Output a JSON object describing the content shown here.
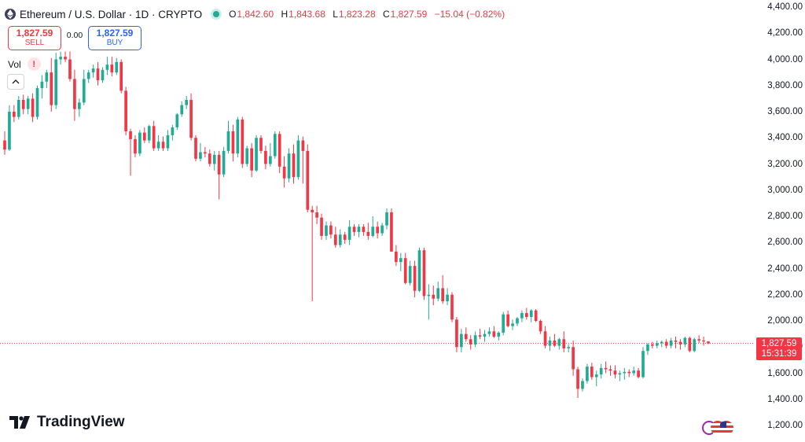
{
  "header": {
    "title": "Ethereum / U.S. Dollar · 1D · CRYPTO",
    "ohlc": [
      {
        "key": "O",
        "value": "1,842.60"
      },
      {
        "key": "H",
        "value": "1,843.68"
      },
      {
        "key": "L",
        "value": "1,823.28"
      },
      {
        "key": "C",
        "value": "1,827.59"
      }
    ],
    "change": "−15.04 (−0.82%)"
  },
  "trade": {
    "sell_price": "1,827.59",
    "sell_label": "SELL",
    "spread": "0.00",
    "buy_price": "1,827.59",
    "buy_label": "BUY"
  },
  "volume": {
    "label": "Vol",
    "warning": "!"
  },
  "price_axis": [
    "4,400.00",
    "4,200.00",
    "4,000.00",
    "3,800.00",
    "3,600.00",
    "3,400.00",
    "3,200.00",
    "3,000.00",
    "2,800.00",
    "2,600.00",
    "2,400.00",
    "2,200.00",
    "2,000.00",
    "1,800.00",
    "1,600.00",
    "1,400.00",
    "1,200.00"
  ],
  "last_price": {
    "price": "1,827.59",
    "countdown": "15:31:39"
  },
  "brand": {
    "name": "TradingView"
  },
  "colors": {
    "up": "#22ab94",
    "down": "#f23645",
    "accent": "#2962ff",
    "grid": "#f2f3f5"
  },
  "chart_data": {
    "type": "candlestick",
    "symbol": "ETHUSD",
    "interval": "1D",
    "ylim": [
      1200,
      4400
    ],
    "grid": false,
    "last_price": 1827.59,
    "candles": [
      [
        3380,
        3450,
        3270,
        3310
      ],
      [
        3310,
        3650,
        3300,
        3600
      ],
      [
        3600,
        3650,
        3520,
        3560
      ],
      [
        3560,
        3720,
        3540,
        3690
      ],
      [
        3690,
        3730,
        3580,
        3620
      ],
      [
        3620,
        3720,
        3580,
        3700
      ],
      [
        3700,
        3740,
        3520,
        3560
      ],
      [
        3560,
        3800,
        3540,
        3780
      ],
      [
        3780,
        3880,
        3700,
        3830
      ],
      [
        3830,
        3920,
        3780,
        3900
      ],
      [
        3900,
        4010,
        3600,
        3650
      ],
      [
        3650,
        4050,
        3620,
        4000
      ],
      [
        4000,
        4060,
        3960,
        4020
      ],
      [
        4020,
        4060,
        3980,
        4000
      ],
      [
        4000,
        4060,
        3830,
        3850
      ],
      [
        3850,
        3920,
        3530,
        3620
      ],
      [
        3620,
        3700,
        3560,
        3670
      ],
      [
        3670,
        3920,
        3650,
        3850
      ],
      [
        3850,
        3920,
        3820,
        3900
      ],
      [
        3900,
        3960,
        3860,
        3930
      ],
      [
        3930,
        3980,
        3800,
        3840
      ],
      [
        3840,
        3940,
        3820,
        3920
      ],
      [
        3920,
        4020,
        3880,
        3960
      ],
      [
        3960,
        4020,
        3870,
        3900
      ],
      [
        3900,
        4010,
        3880,
        3980
      ],
      [
        3980,
        4000,
        3740,
        3760
      ],
      [
        3760,
        3790,
        3420,
        3450
      ],
      [
        3450,
        3470,
        3110,
        3390
      ],
      [
        3390,
        3420,
        3250,
        3280
      ],
      [
        3280,
        3460,
        3260,
        3440
      ],
      [
        3440,
        3480,
        3360,
        3380
      ],
      [
        3380,
        3500,
        3360,
        3490
      ],
      [
        3490,
        3530,
        3300,
        3320
      ],
      [
        3320,
        3420,
        3300,
        3370
      ],
      [
        3370,
        3410,
        3300,
        3320
      ],
      [
        3320,
        3460,
        3300,
        3420
      ],
      [
        3420,
        3500,
        3380,
        3480
      ],
      [
        3480,
        3590,
        3460,
        3580
      ],
      [
        3580,
        3680,
        3560,
        3650
      ],
      [
        3650,
        3720,
        3620,
        3690
      ],
      [
        3690,
        3740,
        3380,
        3400
      ],
      [
        3400,
        3420,
        3220,
        3240
      ],
      [
        3240,
        3360,
        3220,
        3290
      ],
      [
        3290,
        3330,
        3250,
        3280
      ],
      [
        3280,
        3310,
        3180,
        3200
      ],
      [
        3200,
        3300,
        3150,
        3270
      ],
      [
        3270,
        3300,
        2930,
        3120
      ],
      [
        3120,
        3330,
        3100,
        3300
      ],
      [
        3300,
        3530,
        3280,
        3450
      ],
      [
        3450,
        3500,
        3220,
        3280
      ],
      [
        3280,
        3560,
        3250,
        3540
      ],
      [
        3540,
        3560,
        3170,
        3200
      ],
      [
        3200,
        3340,
        3180,
        3320
      ],
      [
        3320,
        3360,
        3100,
        3150
      ],
      [
        3150,
        3420,
        3140,
        3400
      ],
      [
        3400,
        3420,
        3280,
        3300
      ],
      [
        3300,
        3340,
        3160,
        3200
      ],
      [
        3200,
        3360,
        3180,
        3260
      ],
      [
        3260,
        3450,
        3240,
        3430
      ],
      [
        3430,
        3450,
        3130,
        3180
      ],
      [
        3180,
        3260,
        3020,
        3090
      ],
      [
        3090,
        3320,
        3060,
        3280
      ],
      [
        3280,
        3350,
        3050,
        3100
      ],
      [
        3100,
        3420,
        3080,
        3380
      ],
      [
        3380,
        3410,
        3050,
        3300
      ],
      [
        3300,
        3350,
        2830,
        2850
      ],
      [
        2850,
        2880,
        2150,
        2830
      ],
      [
        2830,
        2880,
        2740,
        2790
      ],
      [
        2790,
        2820,
        2620,
        2650
      ],
      [
        2650,
        2760,
        2620,
        2730
      ],
      [
        2730,
        2760,
        2630,
        2660
      ],
      [
        2660,
        2720,
        2560,
        2580
      ],
      [
        2580,
        2700,
        2560,
        2660
      ],
      [
        2660,
        2680,
        2590,
        2620
      ],
      [
        2620,
        2770,
        2580,
        2720
      ],
      [
        2720,
        2740,
        2650,
        2680
      ],
      [
        2680,
        2740,
        2640,
        2720
      ],
      [
        2720,
        2740,
        2650,
        2680
      ],
      [
        2680,
        2750,
        2620,
        2650
      ],
      [
        2650,
        2800,
        2640,
        2720
      ],
      [
        2720,
        2760,
        2630,
        2670
      ],
      [
        2670,
        2750,
        2650,
        2730
      ],
      [
        2730,
        2860,
        2700,
        2830
      ],
      [
        2830,
        2860,
        2530,
        2530
      ],
      [
        2530,
        2580,
        2420,
        2450
      ],
      [
        2450,
        2520,
        2380,
        2480
      ],
      [
        2480,
        2520,
        2280,
        2290
      ],
      [
        2290,
        2460,
        2270,
        2420
      ],
      [
        2420,
        2460,
        2180,
        2230
      ],
      [
        2230,
        2560,
        2220,
        2540
      ],
      [
        2540,
        2560,
        2160,
        2190
      ],
      [
        2190,
        2280,
        2010,
        2200
      ],
      [
        2200,
        2270,
        2120,
        2170
      ],
      [
        2170,
        2300,
        2150,
        2250
      ],
      [
        2250,
        2350,
        2130,
        2150
      ],
      [
        2150,
        2250,
        2120,
        2200
      ],
      [
        2200,
        2220,
        1990,
        2010
      ],
      [
        2010,
        2030,
        1760,
        1800
      ],
      [
        1800,
        1940,
        1760,
        1900
      ],
      [
        1900,
        1950,
        1840,
        1860
      ],
      [
        1860,
        1890,
        1780,
        1820
      ],
      [
        1820,
        1920,
        1800,
        1890
      ],
      [
        1890,
        1940,
        1860,
        1880
      ],
      [
        1880,
        1930,
        1840,
        1900
      ],
      [
        1900,
        1950,
        1880,
        1920
      ],
      [
        1920,
        1960,
        1870,
        1880
      ],
      [
        1880,
        1920,
        1850,
        1910
      ],
      [
        1910,
        2070,
        1890,
        2050
      ],
      [
        2050,
        2080,
        1950,
        1960
      ],
      [
        1960,
        2010,
        1930,
        1980
      ],
      [
        1980,
        2030,
        1960,
        2020
      ],
      [
        2020,
        2080,
        1990,
        2060
      ],
      [
        2060,
        2100,
        2010,
        2030
      ],
      [
        2030,
        2090,
        1990,
        2080
      ],
      [
        2080,
        2090,
        1990,
        2000
      ],
      [
        2000,
        2010,
        1900,
        1920
      ],
      [
        1920,
        1960,
        1790,
        1810
      ],
      [
        1810,
        1880,
        1770,
        1850
      ],
      [
        1850,
        1900,
        1800,
        1810
      ],
      [
        1810,
        1870,
        1780,
        1860
      ],
      [
        1860,
        1920,
        1760,
        1790
      ],
      [
        1790,
        1820,
        1760,
        1800
      ],
      [
        1800,
        1850,
        1580,
        1630
      ],
      [
        1630,
        1650,
        1410,
        1480
      ],
      [
        1480,
        1560,
        1460,
        1540
      ],
      [
        1540,
        1670,
        1520,
        1650
      ],
      [
        1650,
        1680,
        1550,
        1570
      ],
      [
        1570,
        1620,
        1500,
        1590
      ],
      [
        1590,
        1670,
        1560,
        1640
      ],
      [
        1640,
        1690,
        1600,
        1630
      ],
      [
        1630,
        1660,
        1580,
        1620
      ],
      [
        1620,
        1660,
        1560,
        1590
      ],
      [
        1590,
        1620,
        1540,
        1600
      ],
      [
        1600,
        1640,
        1550,
        1610
      ],
      [
        1610,
        1630,
        1570,
        1600
      ],
      [
        1600,
        1650,
        1580,
        1620
      ],
      [
        1620,
        1640,
        1560,
        1570
      ],
      [
        1570,
        1800,
        1560,
        1770
      ],
      [
        1770,
        1830,
        1740,
        1820
      ],
      [
        1820,
        1840,
        1790,
        1810
      ],
      [
        1810,
        1850,
        1790,
        1830
      ],
      [
        1830,
        1850,
        1800,
        1840
      ],
      [
        1840,
        1860,
        1790,
        1810
      ],
      [
        1810,
        1870,
        1790,
        1850
      ],
      [
        1850,
        1880,
        1790,
        1840
      ],
      [
        1840,
        1860,
        1780,
        1820
      ],
      [
        1820,
        1880,
        1800,
        1870
      ],
      [
        1870,
        1880,
        1760,
        1770
      ],
      [
        1770,
        1870,
        1760,
        1860
      ],
      [
        1860,
        1890,
        1830,
        1850
      ],
      [
        1850,
        1880,
        1810,
        1842.6
      ],
      [
        1842.6,
        1843.68,
        1823.28,
        1827.59
      ]
    ]
  }
}
